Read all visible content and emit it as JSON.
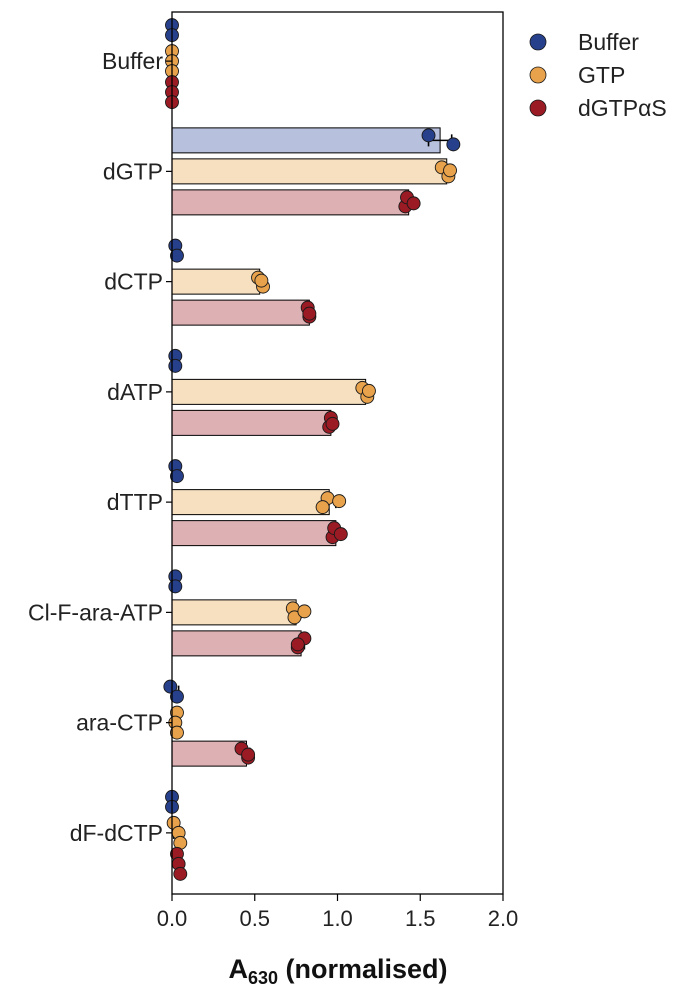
{
  "chart_data": {
    "type": "bar",
    "orientation": "horizontal",
    "categories": [
      "Buffer",
      "dGTP",
      "dCTP",
      "dATP",
      "dTTP",
      "Cl-F-ara-ATP",
      "ara-CTP",
      "dF-dCTP"
    ],
    "series": [
      {
        "name": "Buffer",
        "color": "#27408b",
        "bar_color": "#b7c0dc",
        "values": [
          0.0,
          1.62,
          0.02,
          0.02,
          0.02,
          0.02,
          0.02,
          0.0
        ],
        "points": [
          [
            0.0,
            0.0
          ],
          [
            1.55,
            1.7
          ],
          [
            0.02,
            0.03
          ],
          [
            0.02,
            0.02
          ],
          [
            0.02,
            0.03
          ],
          [
            0.02,
            0.02
          ],
          [
            -0.01,
            0.03
          ],
          [
            0.0,
            0.0
          ]
        ]
      },
      {
        "name": "GTP",
        "color": "#e8a24b",
        "bar_color": "#f7e0c0",
        "values": [
          0.0,
          1.66,
          0.53,
          1.17,
          0.95,
          0.75,
          0.02,
          0.03
        ],
        "points": [
          [
            0.0,
            0.0,
            0.0
          ],
          [
            1.63,
            1.67,
            1.68
          ],
          [
            0.52,
            0.55,
            0.54
          ],
          [
            1.15,
            1.18,
            1.19
          ],
          [
            0.94,
            0.91,
            1.01
          ],
          [
            0.73,
            0.74,
            0.8
          ],
          [
            0.03,
            0.02,
            0.03
          ],
          [
            0.01,
            0.04,
            0.05
          ]
        ]
      },
      {
        "name": "dGTPαS",
        "color": "#9b1b24",
        "bar_color": "#ddb0b4",
        "values": [
          0.0,
          1.43,
          0.83,
          0.96,
          0.99,
          0.78,
          0.45,
          0.04
        ],
        "points": [
          [
            0.0,
            0.0,
            0.0
          ],
          [
            1.41,
            1.42,
            1.46
          ],
          [
            0.83,
            0.82,
            0.83
          ],
          [
            0.95,
            0.96,
            0.97
          ],
          [
            0.97,
            0.98,
            1.02
          ],
          [
            0.76,
            0.8,
            0.76
          ],
          [
            0.46,
            0.42,
            0.46
          ],
          [
            0.03,
            0.04,
            0.05
          ]
        ]
      }
    ],
    "error": [
      [
        0.005,
        0.07,
        0.01,
        0.005,
        0.01,
        0.01,
        0.02,
        0.005
      ],
      [
        0.005,
        0.02,
        0.015,
        0.02,
        0.04,
        0.03,
        0.005,
        0.02
      ],
      [
        0.005,
        0.03,
        0.005,
        0.01,
        0.02,
        0.02,
        0.02,
        0.01
      ]
    ],
    "xlabel_main": "A",
    "xlabel_sub": "630",
    "xlabel_suffix": " (normalised)",
    "xlim": [
      0.0,
      2.0
    ],
    "xticks": [
      "0.0",
      "0.5",
      "1.0",
      "1.5",
      "2.0"
    ],
    "legend_position": "top-right"
  }
}
